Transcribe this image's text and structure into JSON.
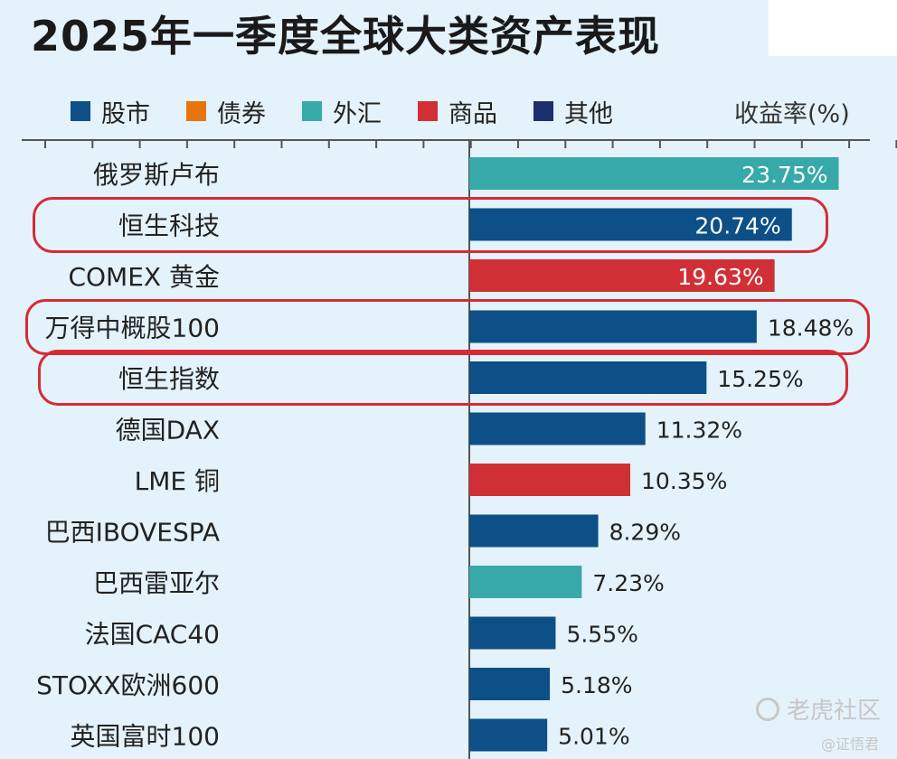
{
  "title": "2025年一季度全球大类资产表现",
  "unit_label": "收益率(%)",
  "watermark": {
    "brand": "老虎社区",
    "author": "@证悟君"
  },
  "legend": [
    {
      "label": "股市",
      "color": "#0d4f87"
    },
    {
      "label": "债券",
      "color": "#e8740d"
    },
    {
      "label": "外汇",
      "color": "#36a9a8"
    },
    {
      "label": "商品",
      "color": "#d12f36"
    },
    {
      "label": "其他",
      "color": "#1e2f6e"
    }
  ],
  "chart_data": {
    "type": "bar",
    "orientation": "horizontal",
    "categories": [
      "俄罗斯卢布",
      "恒生科技",
      "COMEX 黄金",
      "万得中概股100",
      "恒生指数",
      "德国DAX",
      "LME 铜",
      "巴西IBOVESPA",
      "巴西雷亚尔",
      "法国CAC40",
      "STOXX欧洲600",
      "英国富时100"
    ],
    "values": [
      23.75,
      20.74,
      19.63,
      18.48,
      15.25,
      11.32,
      10.35,
      8.29,
      7.23,
      5.55,
      5.18,
      5.01
    ],
    "value_labels": [
      "23.75%",
      "20.74%",
      "19.63%",
      "18.48%",
      "15.25%",
      "11.32%",
      "10.35%",
      "8.29%",
      "7.23%",
      "5.55%",
      "5.18%",
      "5.01%"
    ],
    "asset_class": [
      "外汇",
      "股市",
      "商品",
      "股市",
      "股市",
      "股市",
      "商品",
      "股市",
      "外汇",
      "股市",
      "股市",
      "股市"
    ],
    "highlighted": [
      "恒生科技",
      "万得中概股100",
      "恒生指数"
    ],
    "xlim": [
      0,
      25
    ],
    "ylabel": "收益率(%)",
    "grid": false,
    "legend_position": "top"
  }
}
